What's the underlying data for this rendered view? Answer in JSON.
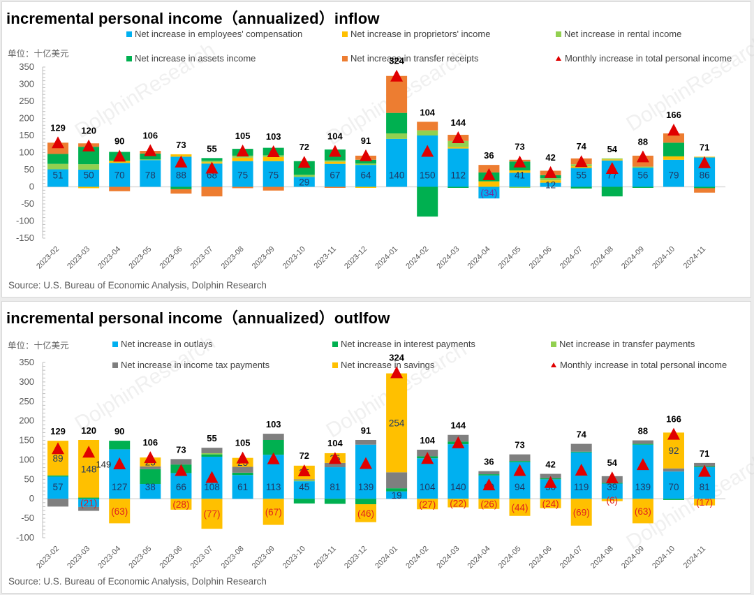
{
  "colors": {
    "blue": "#00B0F0",
    "yellow": "#FFC000",
    "lightgreen": "#92D050",
    "green": "#00B050",
    "orange": "#ED7D31",
    "gray": "#7F7F7F",
    "red": "#E00000",
    "neg_label": "#E0201E",
    "neg_label_inflow": "#7030A0"
  },
  "watermark": "DolphinResearch",
  "chart_data": [
    {
      "type": "bar",
      "stacked": true,
      "title": "incremental personal income（annualized）inflow",
      "unit_label": "单位：十亿美元",
      "source": "Source: U.S. Bureau of Economic Analysis, Dolphin Research",
      "xlabel": "",
      "ylabel": "",
      "ylim": [
        -150,
        350
      ],
      "yticks": [
        350,
        300,
        250,
        200,
        150,
        100,
        50,
        0,
        -50,
        -100,
        -150
      ],
      "grid": false,
      "legend_position": "top",
      "categories": [
        "2023-02",
        "2023-03",
        "2023-04",
        "2023-05",
        "2023-06",
        "2023-07",
        "2023-08",
        "2023-09",
        "2023-10",
        "2023-11",
        "2023-12",
        "2024-01",
        "2024-02",
        "2024-03",
        "2024-04",
        "2024-05",
        "2024-06",
        "2024-07",
        "2024-08",
        "2024-09",
        "2024-10",
        "2024-11"
      ],
      "series": [
        {
          "name": "Net increase in employees' compensation",
          "color_key": "blue",
          "labeled": true,
          "values": [
            51,
            50,
            70,
            78,
            88,
            68,
            75,
            75,
            29,
            67,
            64,
            140,
            150,
            112,
            -34,
            41,
            12,
            55,
            77,
            56,
            79,
            86
          ]
        },
        {
          "name": "Net increase in proprietors' income",
          "color_key": "yellow",
          "values": [
            0,
            -4,
            6,
            0,
            7,
            4,
            10,
            12,
            0,
            6,
            -3,
            0,
            0,
            4,
            16,
            7,
            7,
            5,
            3,
            0,
            10,
            2
          ]
        },
        {
          "name": "Net increase in rental income",
          "color_key": "lightgreen",
          "values": [
            16,
            16,
            0,
            2,
            0,
            4,
            6,
            5,
            6,
            4,
            4,
            16,
            15,
            18,
            0,
            -3,
            6,
            6,
            3,
            3,
            0,
            0
          ]
        },
        {
          "name": "Net increase in assets income",
          "color_key": "green",
          "values": [
            29,
            51,
            26,
            17,
            -7,
            8,
            20,
            22,
            40,
            32,
            11,
            60,
            -87,
            -3,
            26,
            26,
            9,
            -5,
            -28,
            -3,
            40,
            -4
          ]
        },
        {
          "name": "Net increase in transfer receipts",
          "color_key": "orange",
          "values": [
            33,
            10,
            -13,
            8,
            -13,
            -28,
            -4,
            -11,
            0,
            -3,
            12,
            108,
            25,
            18,
            22,
            5,
            13,
            17,
            0,
            32,
            27,
            -13
          ]
        }
      ],
      "total_series": {
        "name": "Monthly increase in total personal income",
        "color_key": "red",
        "values": [
          129,
          120,
          90,
          106,
          73,
          55,
          105,
          103,
          72,
          104,
          91,
          324,
          104,
          144,
          36,
          73,
          42,
          74,
          54,
          88,
          166,
          71
        ]
      }
    },
    {
      "type": "bar",
      "stacked": true,
      "title": "incremental personal income（annualized）outlfow",
      "unit_label": "单位：十亿美元",
      "source": "Source: U.S. Bureau of Economic Analysis, Dolphin Research",
      "xlabel": "",
      "ylabel": "",
      "ylim": [
        -100,
        350
      ],
      "yticks": [
        350,
        300,
        250,
        200,
        150,
        100,
        50,
        0,
        -50,
        -100
      ],
      "grid": false,
      "legend_position": "top",
      "categories": [
        "2023-02",
        "2023-03",
        "2023-04",
        "2023-05",
        "2023-06",
        "2023-07",
        "2023-08",
        "2023-09",
        "2023-10",
        "2023-11",
        "2023-12",
        "2024-01",
        "2024-02",
        "2024-03",
        "2024-04",
        "2024-05",
        "2024-06",
        "2024-07",
        "2024-08",
        "2024-09",
        "2024-10",
        "2024-11"
      ],
      "series": [
        {
          "name": "Net increase in outlays",
          "color_key": "blue",
          "labeled": true,
          "values": [
            57,
            -21,
            127,
            38,
            66,
            108,
            61,
            113,
            45,
            81,
            139,
            19,
            104,
            140,
            60,
            94,
            50,
            119,
            39,
            139,
            70,
            81
          ]
        },
        {
          "name": "Net increase in interest payments",
          "color_key": "green",
          "values": [
            3,
            3,
            22,
            38,
            22,
            6,
            6,
            38,
            -12,
            -13,
            -14,
            8,
            5,
            7,
            3,
            3,
            3,
            2,
            2,
            2,
            -3,
            2
          ]
        },
        {
          "name": "Net increase in transfer payments",
          "color_key": "lightgreen",
          "values": [
            0,
            0,
            0,
            0,
            0,
            3,
            0,
            0,
            3,
            0,
            0,
            0,
            0,
            0,
            0,
            0,
            0,
            0,
            0,
            0,
            0,
            0
          ]
        },
        {
          "name": "Net increase in income tax payments",
          "color_key": "gray",
          "values": [
            -20,
            -10,
            0,
            7,
            14,
            14,
            15,
            16,
            2,
            11,
            12,
            41,
            17,
            17,
            8,
            17,
            11,
            20,
            17,
            9,
            8,
            9
          ]
        },
        {
          "name": "Net increase in savings",
          "color_key": "yellow",
          "labeled": true,
          "values": [
            89,
            148,
            -63,
            23,
            -28,
            -77,
            23,
            -67,
            35,
            25,
            -46,
            254,
            -27,
            -22,
            -26,
            -44,
            -24,
            -69,
            -6,
            -63,
            92,
            -17
          ]
        }
      ],
      "total_series": {
        "name": "Monthly increase in total personal income",
        "color_key": "red",
        "values": [
          129,
          120,
          90,
          106,
          73,
          55,
          105,
          103,
          72,
          104,
          91,
          324,
          104,
          144,
          36,
          73,
          42,
          74,
          54,
          88,
          166,
          71
        ]
      },
      "stray_labels": [
        {
          "category": "2023-04",
          "text": "149"
        }
      ]
    }
  ]
}
